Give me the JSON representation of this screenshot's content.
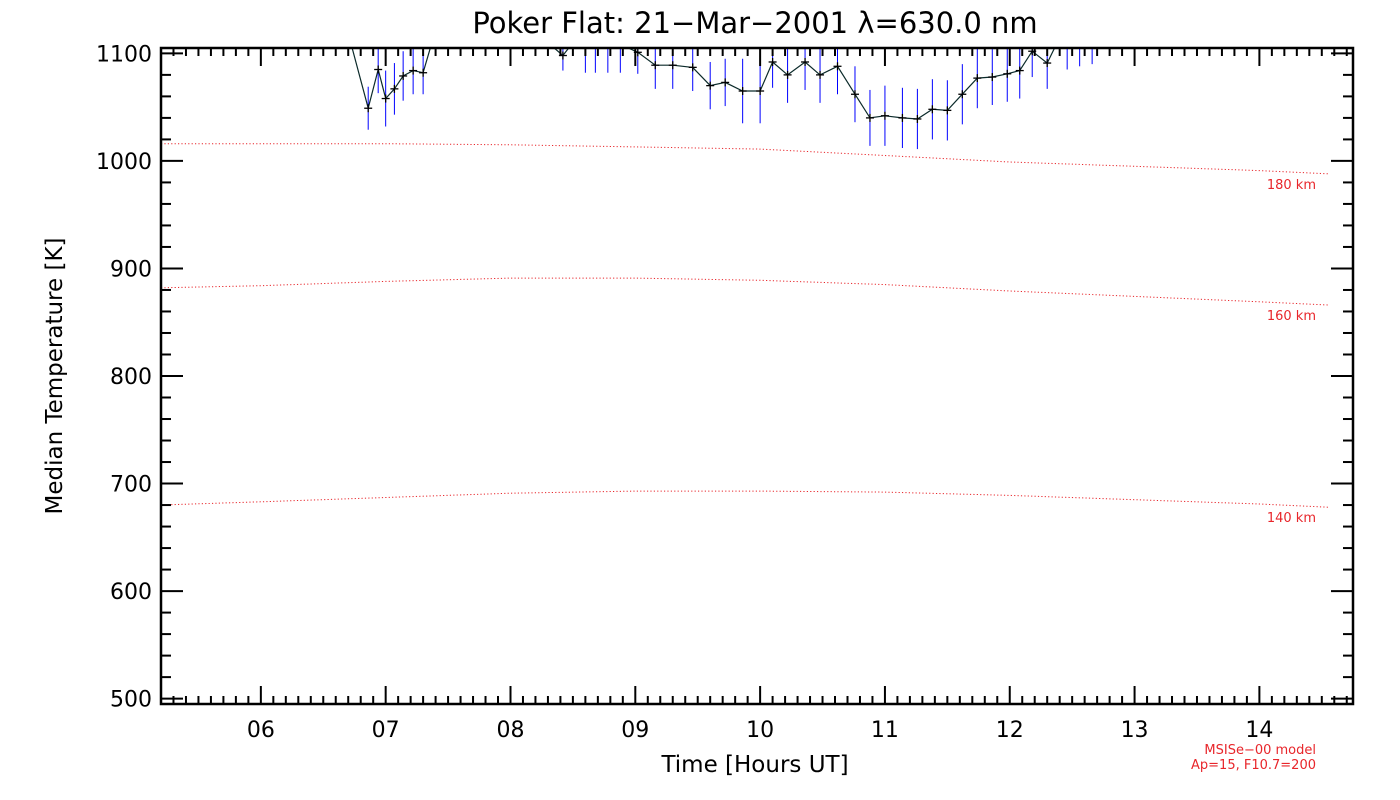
{
  "chart_data": {
    "type": "line",
    "title": "Poker Flat: 21−Mar−2001 λ=630.0 nm",
    "xlabel": "Time [Hours UT]",
    "ylabel": "Median Temperature [K]",
    "xlim": [
      5.2,
      14.75
    ],
    "ylim": [
      495,
      1105
    ],
    "x_ticks": [
      6,
      7,
      8,
      9,
      10,
      11,
      12,
      13,
      14
    ],
    "x_tick_labels": [
      "06",
      "07",
      "08",
      "09",
      "10",
      "11",
      "12",
      "13",
      "14"
    ],
    "y_ticks": [
      500,
      600,
      700,
      800,
      900,
      1000,
      1100
    ],
    "y_tick_labels": [
      "500",
      "600",
      "700",
      "800",
      "900",
      "1000",
      "1100"
    ],
    "grid": false,
    "series": [
      {
        "kind": "measurement",
        "color": "#000000",
        "errorbar_color": "#0000ff",
        "segments": [
          [
            {
              "x": 6.72,
              "y": 1110,
              "err": 0
            },
            {
              "x": 6.86,
              "y": 1049,
              "err": 20
            },
            {
              "x": 6.94,
              "y": 1085,
              "err": 22
            },
            {
              "x": 7.0,
              "y": 1058,
              "err": 26
            },
            {
              "x": 7.07,
              "y": 1067,
              "err": 24
            },
            {
              "x": 7.14,
              "y": 1079,
              "err": 23
            },
            {
              "x": 7.22,
              "y": 1084,
              "err": 22
            },
            {
              "x": 7.3,
              "y": 1082,
              "err": 20
            },
            {
              "x": 7.37,
              "y": 1110,
              "err": 0
            }
          ],
          [
            {
              "x": 8.3,
              "y": 1110,
              "err": 0
            },
            {
              "x": 8.42,
              "y": 1098,
              "err": 14
            },
            {
              "x": 8.5,
              "y": 1110,
              "err": 0
            }
          ],
          [
            {
              "x": 8.85,
              "y": 1110,
              "err": 0
            },
            {
              "x": 9.02,
              "y": 1101,
              "err": 20
            },
            {
              "x": 9.16,
              "y": 1089,
              "err": 22
            },
            {
              "x": 9.3,
              "y": 1089,
              "err": 22
            },
            {
              "x": 9.46,
              "y": 1087,
              "err": 22
            },
            {
              "x": 9.6,
              "y": 1070,
              "err": 22
            },
            {
              "x": 9.72,
              "y": 1073,
              "err": 22
            },
            {
              "x": 9.86,
              "y": 1065,
              "err": 30
            },
            {
              "x": 10.0,
              "y": 1065,
              "err": 30
            },
            {
              "x": 10.1,
              "y": 1092,
              "err": 24
            },
            {
              "x": 10.22,
              "y": 1080,
              "err": 26
            },
            {
              "x": 10.36,
              "y": 1092,
              "err": 26
            },
            {
              "x": 10.48,
              "y": 1080,
              "err": 26
            },
            {
              "x": 10.62,
              "y": 1088,
              "err": 26
            },
            {
              "x": 10.76,
              "y": 1062,
              "err": 26
            },
            {
              "x": 10.88,
              "y": 1040,
              "err": 26
            },
            {
              "x": 11.0,
              "y": 1042,
              "err": 28
            },
            {
              "x": 11.14,
              "y": 1040,
              "err": 28
            },
            {
              "x": 11.26,
              "y": 1039,
              "err": 28
            },
            {
              "x": 11.38,
              "y": 1048,
              "err": 28
            },
            {
              "x": 11.5,
              "y": 1047,
              "err": 28
            },
            {
              "x": 11.62,
              "y": 1062,
              "err": 28
            },
            {
              "x": 11.74,
              "y": 1077,
              "err": 28
            },
            {
              "x": 11.86,
              "y": 1078,
              "err": 26
            },
            {
              "x": 11.98,
              "y": 1081,
              "err": 26
            },
            {
              "x": 12.08,
              "y": 1084,
              "err": 26
            },
            {
              "x": 12.18,
              "y": 1102,
              "err": 24
            },
            {
              "x": 12.3,
              "y": 1091,
              "err": 24
            },
            {
              "x": 12.38,
              "y": 1110,
              "err": 0
            }
          ]
        ],
        "clipped_errorbars": [
          {
            "x": 8.6,
            "y": 1100,
            "err": 18
          },
          {
            "x": 8.68,
            "y": 1100,
            "err": 18
          },
          {
            "x": 8.78,
            "y": 1100,
            "err": 18
          },
          {
            "x": 8.88,
            "y": 1100,
            "err": 18
          },
          {
            "x": 12.46,
            "y": 1100,
            "err": 15
          },
          {
            "x": 12.56,
            "y": 1100,
            "err": 12
          },
          {
            "x": 12.66,
            "y": 1100,
            "err": 10
          }
        ]
      },
      {
        "name": "180 km",
        "kind": "model",
        "color": "#e8262b",
        "x": [
          5.2,
          6.0,
          7.0,
          8.0,
          9.0,
          10.0,
          11.0,
          12.0,
          13.0,
          14.0,
          14.55
        ],
        "y": [
          1016,
          1016,
          1016,
          1015,
          1013,
          1011,
          1005,
          999,
          995,
          991,
          988
        ]
      },
      {
        "name": "160 km",
        "kind": "model",
        "color": "#e8262b",
        "x": [
          5.2,
          6.0,
          7.0,
          8.0,
          9.0,
          10.0,
          11.0,
          12.0,
          13.0,
          14.0,
          14.55
        ],
        "y": [
          882,
          884,
          888,
          891,
          891,
          889,
          885,
          879,
          874,
          869,
          866
        ]
      },
      {
        "name": "140 km",
        "kind": "model",
        "color": "#e8262b",
        "x": [
          5.2,
          6.0,
          7.0,
          8.0,
          9.0,
          10.0,
          11.0,
          12.0,
          13.0,
          14.0,
          14.55
        ],
        "y": [
          680,
          683,
          687,
          691,
          693,
          693,
          692,
          689,
          685,
          681,
          678
        ]
      }
    ],
    "annotations": [
      "MSISe−00 model",
      "Ap=15, F10.7=200"
    ]
  }
}
